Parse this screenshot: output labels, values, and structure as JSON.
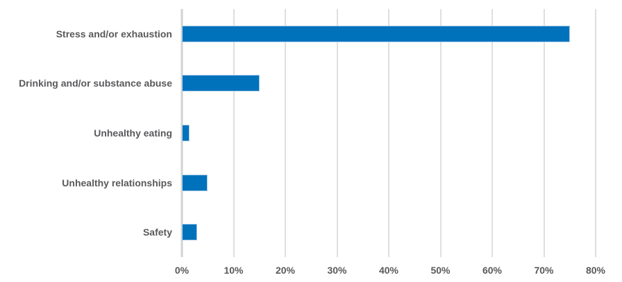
{
  "chart_data": {
    "type": "bar",
    "orientation": "horizontal",
    "title": "",
    "xlabel": "",
    "ylabel": "",
    "categories": [
      "Stress and/or exhaustion",
      "Drinking and/or substance abuse",
      "Unhealthy eating",
      "Unhealthy relationships",
      "Safety"
    ],
    "values": [
      75,
      15,
      1.5,
      5,
      3
    ],
    "value_unit": "%",
    "xlim": [
      0,
      80
    ],
    "xticks": [
      0,
      10,
      20,
      30,
      40,
      50,
      60,
      70,
      80
    ],
    "xtick_labels": [
      "0%",
      "10%",
      "20%",
      "30%",
      "40%",
      "50%",
      "60%",
      "70%",
      "80%"
    ],
    "grid": "vertical",
    "legend_position": "none",
    "colors": {
      "bar_fill": "#0072bc",
      "bar_border": "#aecde8",
      "gridline": "#dedede",
      "zero_line": "#d2d2d2",
      "label_text": "#58595b",
      "background": "#ffffff"
    }
  }
}
